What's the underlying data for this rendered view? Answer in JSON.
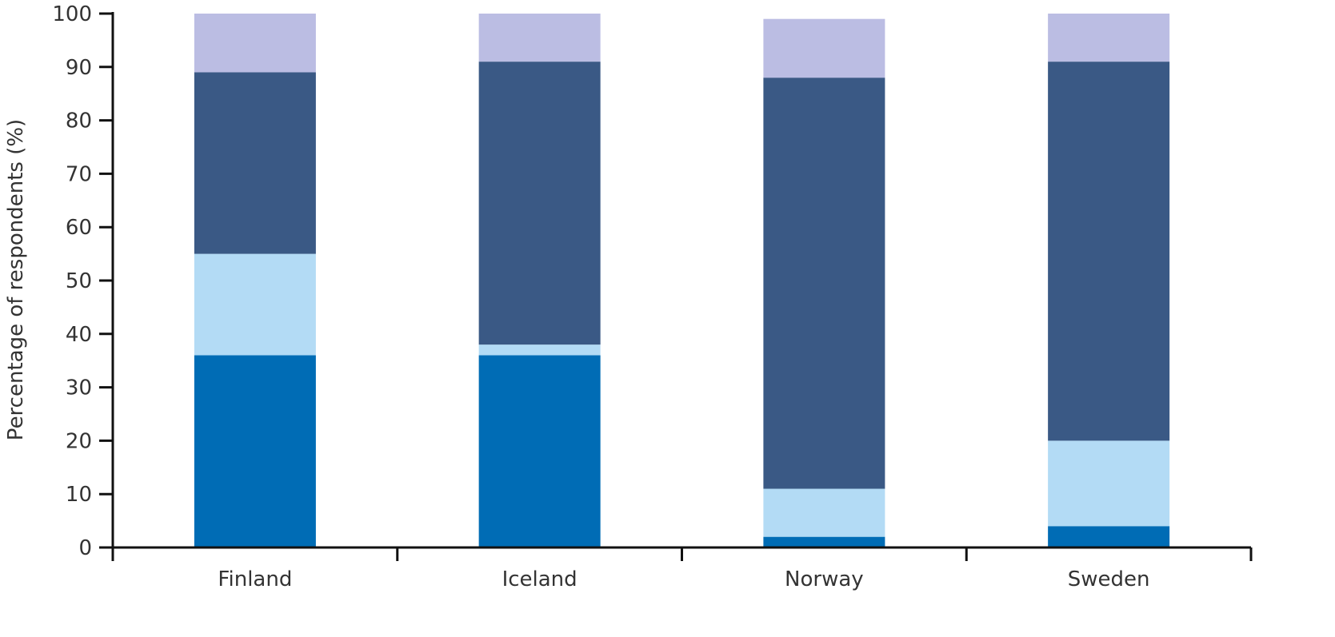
{
  "chart_data": {
    "type": "bar",
    "stacked": true,
    "categories": [
      "Finland",
      "Iceland",
      "Norway",
      "Sweden"
    ],
    "series": [
      {
        "values": [
          36,
          36,
          2,
          4
        ],
        "color": "#006cb5"
      },
      {
        "values": [
          19,
          2,
          9,
          16
        ],
        "color": "#b3dbf5"
      },
      {
        "values": [
          34,
          53,
          77,
          71
        ],
        "color": "#3a5985"
      },
      {
        "values": [
          11,
          9,
          11,
          9
        ],
        "color": "#bbbde3"
      }
    ],
    "title": "",
    "xlabel": "",
    "ylabel": "Percentage of respondents (%)",
    "ylim": [
      0,
      100
    ],
    "yticks": [
      0,
      10,
      20,
      30,
      40,
      50,
      60,
      70,
      80,
      90,
      100
    ],
    "grid": false,
    "legend": "none"
  }
}
